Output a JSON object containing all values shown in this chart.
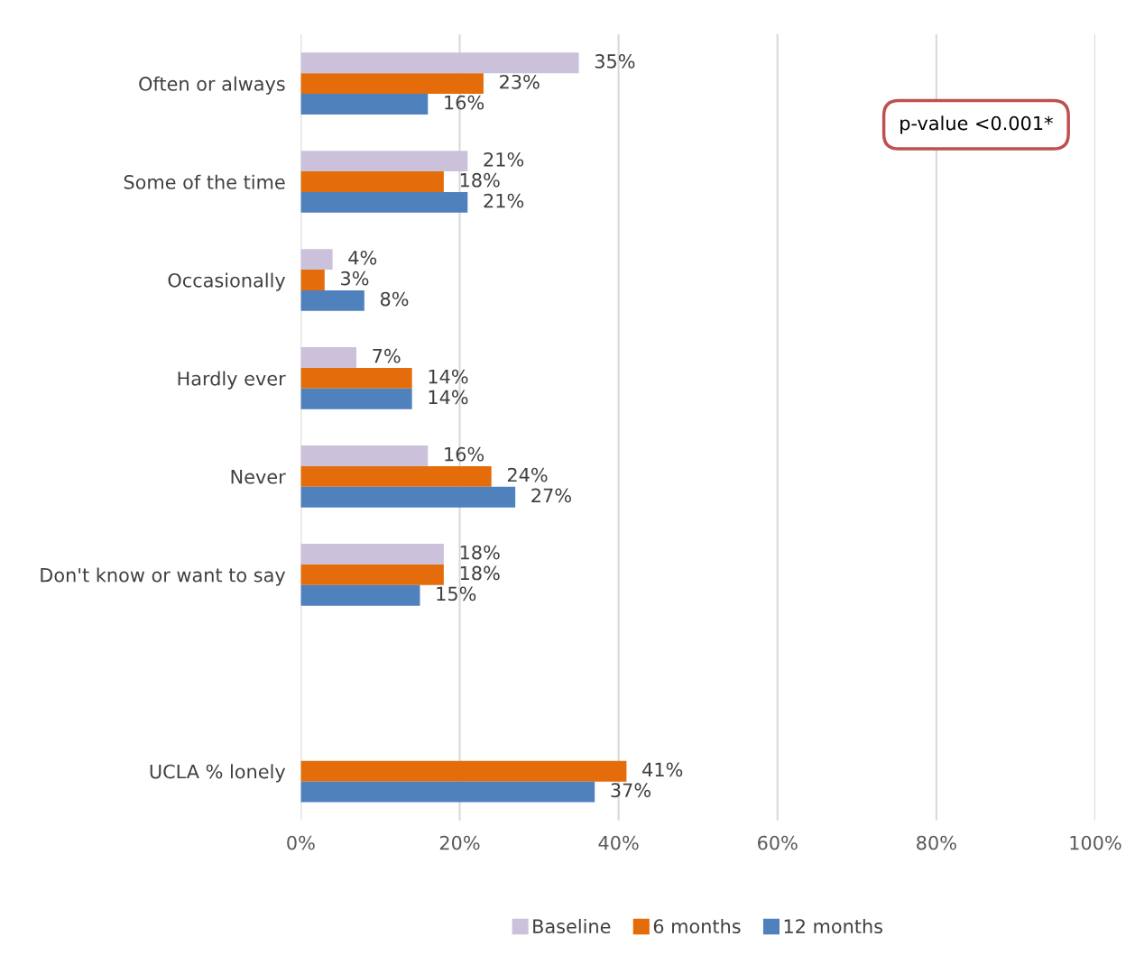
{
  "chart_data": {
    "type": "bar",
    "orientation": "horizontal",
    "categories": [
      "Often or always",
      "Some of the time",
      "Occasionally",
      "Hardly ever",
      "Never",
      "Don't know or want to say",
      null,
      "UCLA % lonely"
    ],
    "series": [
      {
        "name": "Baseline",
        "color": "#ccc1da",
        "values": [
          35,
          21,
          4,
          7,
          16,
          18,
          null,
          null
        ],
        "value_labels": [
          "35%",
          "21%",
          "4%",
          "7%",
          "16%",
          "18%",
          null,
          null
        ]
      },
      {
        "name": "6 months",
        "color": "#e46c0a",
        "values": [
          23,
          18,
          3,
          14,
          24,
          18,
          null,
          41
        ],
        "value_labels": [
          "23%",
          "18%",
          "3%",
          "14%",
          "24%",
          "18%",
          null,
          "41%"
        ]
      },
      {
        "name": "12 months",
        "color": "#4f81bd",
        "values": [
          16,
          21,
          8,
          14,
          27,
          15,
          null,
          37
        ],
        "value_labels": [
          "16%",
          "21%",
          "8%",
          "14%",
          "27%",
          "15%",
          null,
          "37%"
        ]
      }
    ],
    "xlim": [
      0,
      100
    ],
    "xticks": [
      {
        "value": 0,
        "label": "0%"
      },
      {
        "value": 20,
        "label": "20%"
      },
      {
        "value": 40,
        "label": "40%"
      },
      {
        "value": 60,
        "label": "60%"
      },
      {
        "value": 80,
        "label": "80%"
      },
      {
        "value": 100,
        "label": "100%"
      }
    ],
    "grid": "x",
    "legend": "bottom",
    "annotations": [
      "p-value <0.001*"
    ]
  }
}
